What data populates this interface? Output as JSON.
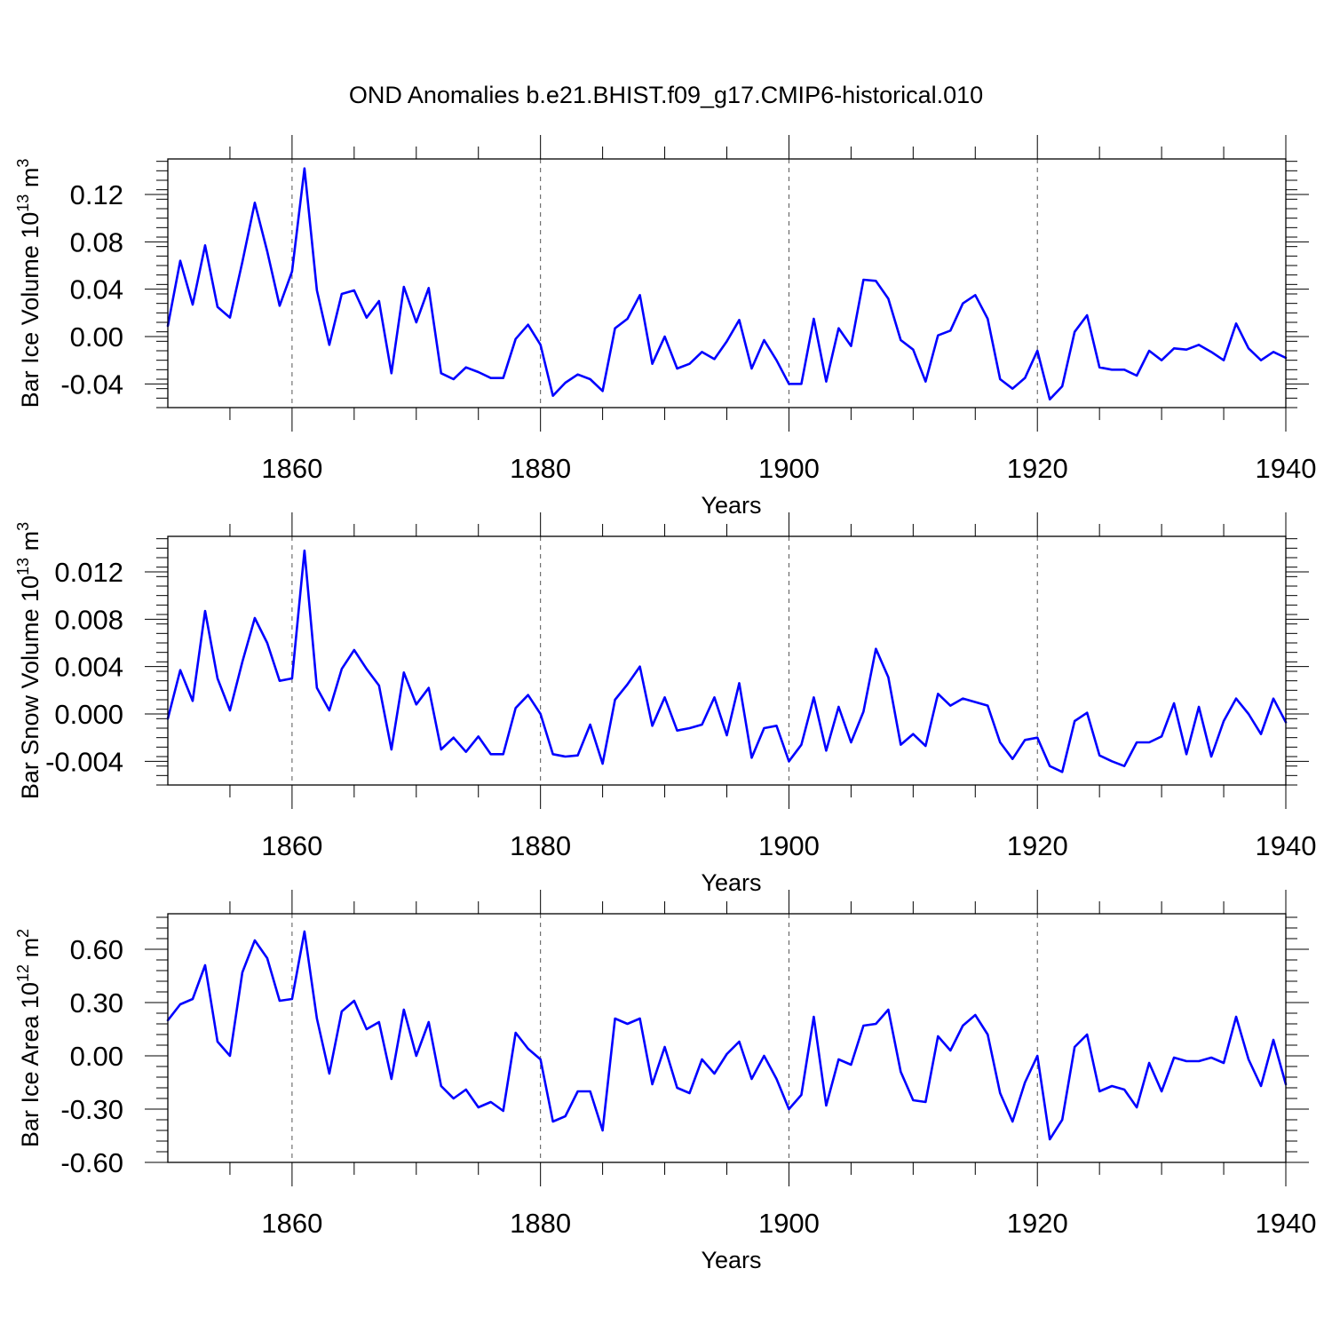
{
  "title": "OND Anomalies b.e21.BHIST.f09_g17.CMIP6-historical.010",
  "colors": {
    "line": "#0000ff",
    "axis": "#000000",
    "grid": "#555555"
  },
  "chart_data": [
    {
      "type": "line",
      "name": "volume",
      "ylabel_text": "Bar Ice Volume 10",
      "ylabel_exp": "13",
      "ylabel_unit": " m",
      "ylabel_unit_exp": "3",
      "xlabel": "Years",
      "xlim": [
        1850,
        1940
      ],
      "ylim": [
        -0.06,
        0.15
      ],
      "xticks": [
        1860,
        1880,
        1900,
        1920,
        1940
      ],
      "yticks": [
        -0.04,
        0.0,
        0.04,
        0.08,
        0.12
      ],
      "ytick_labels": [
        "-0.04",
        "0.00",
        "0.04",
        "0.08",
        "0.12"
      ],
      "grid_x": [
        1860,
        1880,
        1900,
        1920
      ],
      "x_start": 1850,
      "values": [
        0.009,
        0.064,
        0.027,
        0.077,
        0.025,
        0.016,
        0.063,
        0.113,
        0.072,
        0.026,
        0.055,
        0.142,
        0.039,
        -0.007,
        0.036,
        0.039,
        0.016,
        0.03,
        -0.031,
        0.042,
        0.012,
        0.041,
        -0.031,
        -0.036,
        -0.026,
        -0.03,
        -0.035,
        -0.035,
        -0.002,
        0.01,
        -0.007,
        -0.05,
        -0.039,
        -0.032,
        -0.036,
        -0.046,
        0.007,
        0.015,
        0.035,
        -0.023,
        0.0,
        -0.027,
        -0.023,
        -0.013,
        -0.019,
        -0.004,
        0.014,
        -0.027,
        -0.003,
        -0.02,
        -0.04,
        -0.04,
        0.015,
        -0.038,
        0.007,
        -0.008,
        0.048,
        0.047,
        0.032,
        -0.003,
        -0.011,
        -0.038,
        0.001,
        0.005,
        0.028,
        0.035,
        0.015,
        -0.036,
        -0.044,
        -0.035,
        -0.012,
        -0.053,
        -0.042,
        0.004,
        0.018,
        -0.026,
        -0.028,
        -0.028,
        -0.033,
        -0.012,
        -0.02,
        -0.01,
        -0.011,
        -0.007,
        -0.013,
        -0.02,
        0.011,
        -0.01,
        -0.02,
        -0.013,
        -0.018
      ]
    },
    {
      "type": "line",
      "name": "snow",
      "ylabel_text": "Bar Snow Volume 10",
      "ylabel_exp": "13",
      "ylabel_unit": " m",
      "ylabel_unit_exp": "3",
      "xlabel": "Years",
      "xlim": [
        1850,
        1940
      ],
      "ylim": [
        -0.006,
        0.015
      ],
      "xticks": [
        1860,
        1880,
        1900,
        1920,
        1940
      ],
      "yticks": [
        -0.004,
        0.0,
        0.004,
        0.008,
        0.012
      ],
      "ytick_labels": [
        "-0.004",
        "0.000",
        "0.004",
        "0.008",
        "0.012"
      ],
      "grid_x": [
        1860,
        1880,
        1900,
        1920
      ],
      "x_start": 1850,
      "values": [
        -0.0004,
        0.0037,
        0.0011,
        0.0087,
        0.003,
        0.0003,
        0.0044,
        0.0081,
        0.006,
        0.0028,
        0.003,
        0.0138,
        0.0022,
        0.0003,
        0.0038,
        0.0054,
        0.0038,
        0.0024,
        -0.003,
        0.0035,
        0.0008,
        0.0022,
        -0.003,
        -0.002,
        -0.0032,
        -0.0019,
        -0.0034,
        -0.0034,
        0.0005,
        0.0016,
        0.0,
        -0.0034,
        -0.0036,
        -0.0035,
        -0.0009,
        -0.0042,
        0.0012,
        0.0025,
        0.004,
        -0.001,
        0.0014,
        -0.0014,
        -0.0012,
        -0.0009,
        0.0014,
        -0.0018,
        0.0026,
        -0.0037,
        -0.0012,
        -0.001,
        -0.004,
        -0.0026,
        0.0014,
        -0.0031,
        0.0006,
        -0.0024,
        0.0002,
        0.0055,
        0.0031,
        -0.0026,
        -0.0017,
        -0.0027,
        0.0017,
        0.0007,
        0.0013,
        0.001,
        0.0007,
        -0.0024,
        -0.0038,
        -0.0022,
        -0.002,
        -0.0044,
        -0.0049,
        -0.0006,
        0.0001,
        -0.0035,
        -0.004,
        -0.0044,
        -0.0024,
        -0.0024,
        -0.0019,
        0.0009,
        -0.0034,
        0.0006,
        -0.0036,
        -0.0006,
        0.0013,
        0.0,
        -0.0017,
        0.0013,
        -0.0007
      ]
    },
    {
      "type": "line",
      "name": "area",
      "ylabel_text": "Bar Ice Area 10",
      "ylabel_exp": "12",
      "ylabel_unit": " m",
      "ylabel_unit_exp": "2",
      "xlabel": "Years",
      "xlim": [
        1850,
        1940
      ],
      "ylim": [
        -0.6,
        0.8
      ],
      "xticks": [
        1860,
        1880,
        1900,
        1920,
        1940
      ],
      "yticks": [
        -0.6,
        -0.3,
        0.0,
        0.3,
        0.6
      ],
      "ytick_labels": [
        "-0.60",
        "-0.30",
        "0.00",
        "0.30",
        "0.60"
      ],
      "grid_x": [
        1860,
        1880,
        1900,
        1920
      ],
      "x_start": 1850,
      "values": [
        0.2,
        0.29,
        0.32,
        0.51,
        0.08,
        0.0,
        0.47,
        0.65,
        0.55,
        0.31,
        0.32,
        0.7,
        0.21,
        -0.1,
        0.25,
        0.31,
        0.15,
        0.19,
        -0.13,
        0.26,
        0.0,
        0.19,
        -0.17,
        -0.24,
        -0.19,
        -0.29,
        -0.26,
        -0.31,
        0.13,
        0.04,
        -0.02,
        -0.37,
        -0.34,
        -0.2,
        -0.2,
        -0.42,
        0.21,
        0.18,
        0.21,
        -0.16,
        0.05,
        -0.18,
        -0.21,
        -0.02,
        -0.1,
        0.01,
        0.08,
        -0.13,
        0.0,
        -0.13,
        -0.3,
        -0.22,
        0.22,
        -0.28,
        -0.02,
        -0.05,
        0.17,
        0.18,
        0.26,
        -0.09,
        -0.25,
        -0.26,
        0.11,
        0.03,
        0.17,
        0.23,
        0.12,
        -0.21,
        -0.37,
        -0.15,
        0.0,
        -0.47,
        -0.36,
        0.05,
        0.12,
        -0.2,
        -0.17,
        -0.19,
        -0.29,
        -0.04,
        -0.2,
        -0.01,
        -0.03,
        -0.03,
        -0.01,
        -0.04,
        0.22,
        -0.02,
        -0.17,
        0.09,
        -0.16
      ]
    }
  ]
}
